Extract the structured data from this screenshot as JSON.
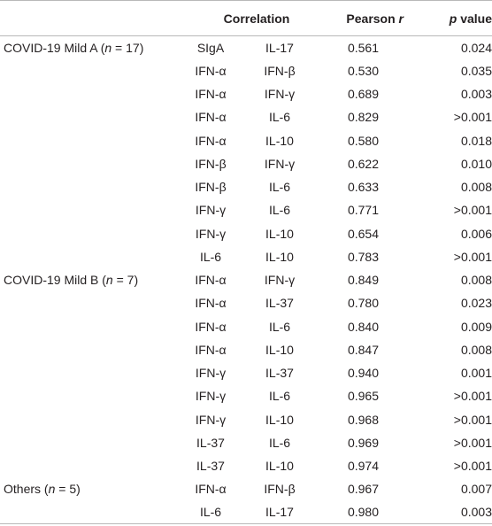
{
  "header": {
    "correlation": "Correlation",
    "pearson": "Pearson",
    "pearson_symbol": "r",
    "pvalue_symbol": "p",
    "pvalue": "value"
  },
  "rows": [
    {
      "group_prefix": "COVID-19 Mild A (",
      "group_n": "n",
      "group_suffix": " = 17)",
      "a": "SIgA",
      "b": "IL-17",
      "r": "0.561",
      "p": "0.024"
    },
    {
      "group_prefix": "",
      "group_n": "",
      "group_suffix": "",
      "a": "IFN-α",
      "b": "IFN-β",
      "r": "0.530",
      "p": "0.035"
    },
    {
      "group_prefix": "",
      "group_n": "",
      "group_suffix": "",
      "a": "IFN-α",
      "b": "IFN-γ",
      "r": "0.689",
      "p": "0.003"
    },
    {
      "group_prefix": "",
      "group_n": "",
      "group_suffix": "",
      "a": "IFN-α",
      "b": "IL-6",
      "r": "0.829",
      "p": ">0.001"
    },
    {
      "group_prefix": "",
      "group_n": "",
      "group_suffix": "",
      "a": "IFN-α",
      "b": "IL-10",
      "r": "0.580",
      "p": "0.018"
    },
    {
      "group_prefix": "",
      "group_n": "",
      "group_suffix": "",
      "a": "IFN-β",
      "b": "IFN-γ",
      "r": "0.622",
      "p": "0.010"
    },
    {
      "group_prefix": "",
      "group_n": "",
      "group_suffix": "",
      "a": "IFN-β",
      "b": "IL-6",
      "r": "0.633",
      "p": "0.008"
    },
    {
      "group_prefix": "",
      "group_n": "",
      "group_suffix": "",
      "a": "IFN-γ",
      "b": "IL-6",
      "r": "0.771",
      "p": ">0.001"
    },
    {
      "group_prefix": "",
      "group_n": "",
      "group_suffix": "",
      "a": "IFN-γ",
      "b": "IL-10",
      "r": "0.654",
      "p": "0.006"
    },
    {
      "group_prefix": "",
      "group_n": "",
      "group_suffix": "",
      "a": "IL-6",
      "b": "IL-10",
      "r": "0.783",
      "p": ">0.001"
    },
    {
      "group_prefix": "COVID-19 Mild B (",
      "group_n": "n",
      "group_suffix": " = 7)",
      "a": "IFN-α",
      "b": "IFN-γ",
      "r": "0.849",
      "p": "0.008"
    },
    {
      "group_prefix": "",
      "group_n": "",
      "group_suffix": "",
      "a": "IFN-α",
      "b": "IL-37",
      "r": "0.780",
      "p": "0.023"
    },
    {
      "group_prefix": "",
      "group_n": "",
      "group_suffix": "",
      "a": "IFN-α",
      "b": "IL-6",
      "r": "0.840",
      "p": "0.009"
    },
    {
      "group_prefix": "",
      "group_n": "",
      "group_suffix": "",
      "a": "IFN-α",
      "b": "IL-10",
      "r": "0.847",
      "p": "0.008"
    },
    {
      "group_prefix": "",
      "group_n": "",
      "group_suffix": "",
      "a": "IFN-γ",
      "b": "IL-37",
      "r": "0.940",
      "p": "0.001"
    },
    {
      "group_prefix": "",
      "group_n": "",
      "group_suffix": "",
      "a": "IFN-γ",
      "b": "IL-6",
      "r": "0.965",
      "p": ">0.001"
    },
    {
      "group_prefix": "",
      "group_n": "",
      "group_suffix": "",
      "a": "IFN-γ",
      "b": "IL-10",
      "r": "0.968",
      "p": ">0.001"
    },
    {
      "group_prefix": "",
      "group_n": "",
      "group_suffix": "",
      "a": "IL-37",
      "b": "IL-6",
      "r": "0.969",
      "p": ">0.001"
    },
    {
      "group_prefix": "",
      "group_n": "",
      "group_suffix": "",
      "a": "IL-37",
      "b": "IL-10",
      "r": "0.974",
      "p": ">0.001"
    },
    {
      "group_prefix": "Others (",
      "group_n": "n",
      "group_suffix": " = 5)",
      "a": "IFN-α",
      "b": "IFN-β",
      "r": "0.967",
      "p": "0.007"
    },
    {
      "group_prefix": "",
      "group_n": "",
      "group_suffix": "",
      "a": "IL-6",
      "b": "IL-17",
      "r": "0.980",
      "p": "0.003"
    }
  ]
}
